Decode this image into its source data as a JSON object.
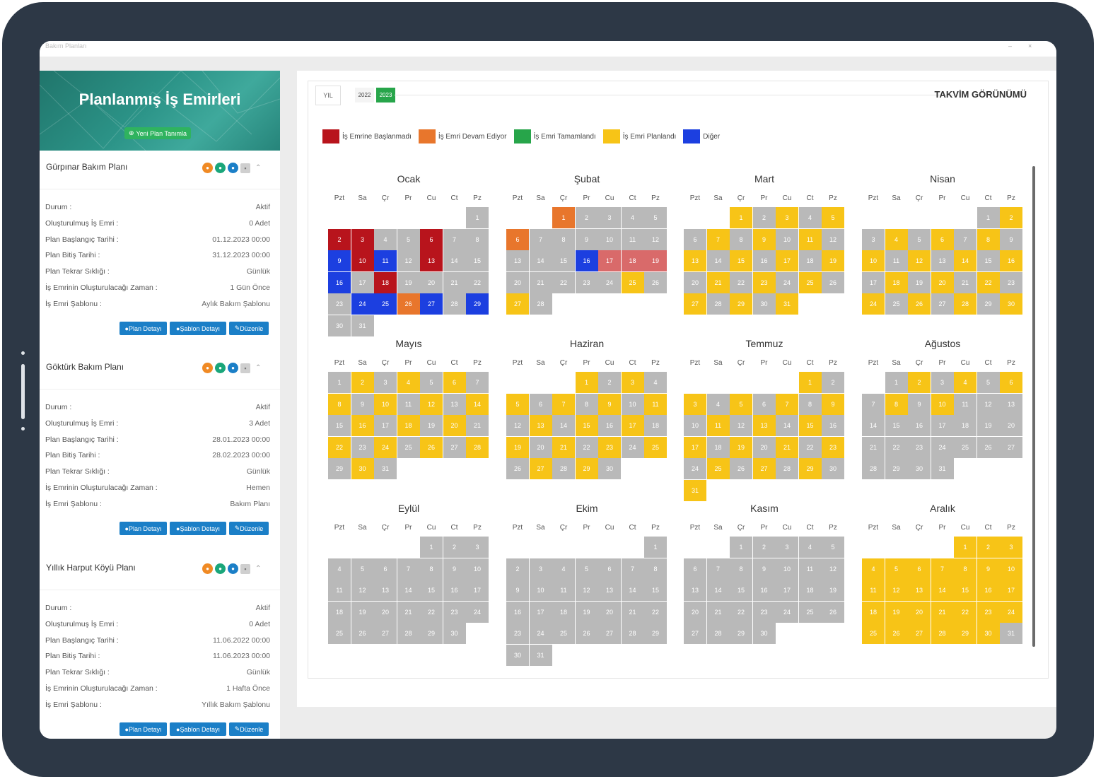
{
  "window": {
    "title": "Bakım Planları",
    "controls": [
      "–",
      "×"
    ]
  },
  "sidebar": {
    "title": "Planlanmış İş Emirleri",
    "new_plan_button": "Yeni Plan Tanımla",
    "field_labels": [
      "Durum :",
      "Oluşturulmuş İş Emri :",
      "Plan Başlangıç Tarihi :",
      "Plan Bitiş Tarihi :",
      "Plan Tekrar Sıklığı :",
      "İş Emrinin Oluşturulacağı Zaman :",
      "İş Emri Şablonu :"
    ],
    "buttons": {
      "plan_detail": "Plan Detayı",
      "template_detail": "Şablon Detayı",
      "edit": "Düzenle"
    },
    "plans": [
      {
        "name": "Gürpınar Bakım Planı",
        "values": [
          "Aktif",
          "0 Adet",
          "01.12.2023 00:00",
          "31.12.2023 00:00",
          "Günlük",
          "1 Gün Önce",
          "Aylık Bakım Şablonu"
        ]
      },
      {
        "name": "Göktürk Bakım Planı",
        "values": [
          "Aktif",
          "3 Adet",
          "28.01.2023 00:00",
          "28.02.2023 00:00",
          "Günlük",
          "Hemen",
          "Bakım Planı"
        ]
      },
      {
        "name": "Yıllık Harput Köyü Planı",
        "values": [
          "Aktif",
          "0 Adet",
          "11.06.2022 00:00",
          "11.06.2023 00:00",
          "Günlük",
          "1 Hafta Önce",
          "Yıllık Bakım Şablonu"
        ]
      }
    ]
  },
  "calendar": {
    "year_label": "YIL",
    "years": [
      "2022",
      "2023"
    ],
    "active_year": "2023",
    "view_title": "TAKVİM GÖRÜNÜMÜ",
    "weekdays": [
      "Pzt",
      "Sa",
      "Çr",
      "Pr",
      "Cu",
      "Ct",
      "Pz"
    ],
    "legend": [
      {
        "label": "İş Emrine Başlanmadı",
        "color": "#b8141c"
      },
      {
        "label": "İş Emri Devam Ediyor",
        "color": "#e8762c"
      },
      {
        "label": "İş Emri Tamamlandı",
        "color": "#27a54a"
      },
      {
        "label": "İş Emri Planlandı",
        "color": "#f7c417"
      },
      {
        "label": "Diğer",
        "color": "#1c3fe0"
      }
    ],
    "status_colors": {
      "g": "#b9b9b9",
      "y": "#f7c417",
      "r": "#b8141c",
      "o": "#e8762c",
      "b": "#1c3fe0",
      "p": "#d96a6a"
    },
    "months": [
      {
        "name": "Ocak",
        "start": 6,
        "days": 31,
        "colors": {
          "2": "r",
          "3": "r",
          "6": "r",
          "9": "b",
          "10": "r",
          "11": "b",
          "13": "r",
          "16": "b",
          "18": "r",
          "24": "b",
          "25": "b",
          "26": "o",
          "27": "b",
          "29": "b"
        }
      },
      {
        "name": "Şubat",
        "start": 2,
        "days": 28,
        "colors": {
          "1": "o",
          "6": "o",
          "16": "b",
          "17": "p",
          "18": "p",
          "19": "p",
          "25": "y",
          "27": "y"
        }
      },
      {
        "name": "Mart",
        "start": 2,
        "days": 31,
        "colors": {
          "1": "y",
          "3": "y",
          "5": "y",
          "7": "y",
          "9": "y",
          "11": "y",
          "13": "y",
          "15": "y",
          "17": "y",
          "19": "y",
          "21": "y",
          "23": "y",
          "25": "y",
          "27": "y",
          "29": "y",
          "31": "y"
        }
      },
      {
        "name": "Nisan",
        "start": 5,
        "days": 30,
        "colors": {
          "2": "y",
          "4": "y",
          "6": "y",
          "8": "y",
          "10": "y",
          "12": "y",
          "14": "y",
          "16": "y",
          "18": "y",
          "20": "y",
          "22": "y",
          "24": "y",
          "26": "y",
          "28": "y",
          "30": "y"
        }
      },
      {
        "name": "Mayıs",
        "start": 0,
        "days": 31,
        "colors": {
          "2": "y",
          "4": "y",
          "6": "y",
          "8": "y",
          "10": "y",
          "12": "y",
          "14": "y",
          "16": "y",
          "18": "y",
          "20": "y",
          "22": "y",
          "24": "y",
          "26": "y",
          "28": "y",
          "30": "y"
        }
      },
      {
        "name": "Haziran",
        "start": 3,
        "days": 30,
        "colors": {
          "1": "y",
          "3": "y",
          "5": "y",
          "7": "y",
          "9": "y",
          "11": "y",
          "13": "y",
          "15": "y",
          "17": "y",
          "19": "y",
          "21": "y",
          "23": "y",
          "25": "y",
          "27": "y",
          "29": "y"
        }
      },
      {
        "name": "Temmuz",
        "start": 5,
        "days": 31,
        "colors": {
          "1": "y",
          "3": "y",
          "5": "y",
          "7": "y",
          "9": "y",
          "11": "y",
          "13": "y",
          "15": "y",
          "17": "y",
          "19": "y",
          "21": "y",
          "23": "y",
          "25": "y",
          "27": "y",
          "29": "y",
          "31": "y"
        }
      },
      {
        "name": "Ağustos",
        "start": 1,
        "days": 31,
        "colors": {
          "2": "y",
          "4": "y",
          "6": "y",
          "8": "y",
          "10": "y"
        }
      },
      {
        "name": "Eylül",
        "start": 4,
        "days": 30,
        "colors": {}
      },
      {
        "name": "Ekim",
        "start": 6,
        "days": 31,
        "colors": {}
      },
      {
        "name": "Kasım",
        "start": 2,
        "days": 30,
        "colors": {}
      },
      {
        "name": "Aralık",
        "start": 4,
        "days": 31,
        "colors": {
          "1": "y",
          "2": "y",
          "3": "y",
          "4": "y",
          "5": "y",
          "6": "y",
          "7": "y",
          "8": "y",
          "9": "y",
          "10": "y",
          "11": "y",
          "12": "y",
          "13": "y",
          "14": "y",
          "15": "y",
          "16": "y",
          "17": "y",
          "18": "y",
          "19": "y",
          "20": "y",
          "21": "y",
          "22": "y",
          "23": "y",
          "24": "y",
          "25": "y",
          "26": "y",
          "27": "y",
          "28": "y",
          "29": "y",
          "30": "y"
        }
      }
    ]
  }
}
